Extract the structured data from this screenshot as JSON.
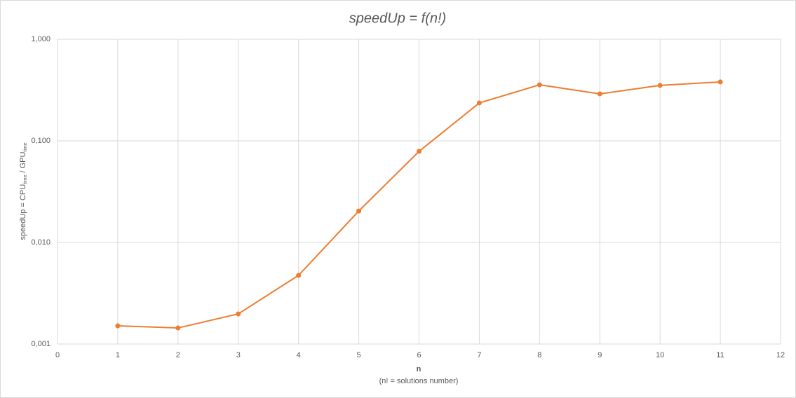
{
  "chart_data": {
    "type": "line",
    "title": "speedUp  = f(n!)",
    "x_label": "n",
    "x_label_note": "(n! = solutions number)",
    "y_label_parts": [
      "speedUp = CPU",
      "time",
      " / GPU",
      "time"
    ],
    "x": [
      1,
      2,
      3,
      4,
      5,
      6,
      7,
      8,
      9,
      10,
      11
    ],
    "series": [
      {
        "name": "speedUp",
        "color": "#ed7d31",
        "values": [
          0.00151,
          0.00144,
          0.00198,
          0.00474,
          0.0204,
          0.0788,
          0.236,
          0.356,
          0.29,
          0.351,
          0.38
        ]
      }
    ],
    "xlim": [
      0,
      12
    ],
    "xticks": [
      0,
      1,
      2,
      3,
      4,
      5,
      6,
      7,
      8,
      9,
      10,
      11,
      12
    ],
    "ylim": [
      0.001,
      1
    ],
    "yticks": [
      {
        "value": 0.001,
        "label": "0,001"
      },
      {
        "value": 0.01,
        "label": "0,010"
      },
      {
        "value": 0.1,
        "label": "0,100"
      },
      {
        "value": 1,
        "label": "1,000"
      }
    ],
    "log_y": true,
    "grid": true
  }
}
